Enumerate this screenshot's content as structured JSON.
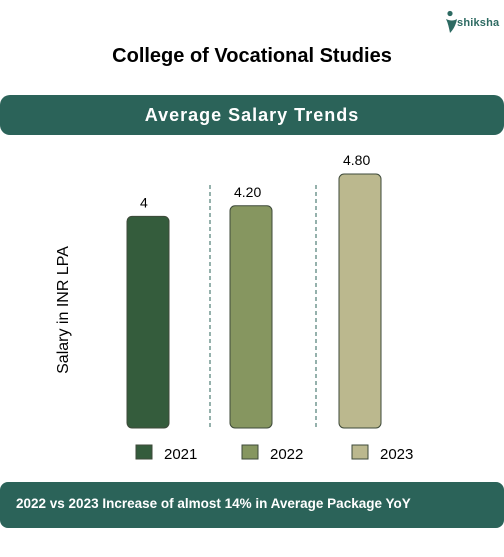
{
  "brand": {
    "logo_text": "shiksha"
  },
  "page_title": "College of Vocational Studies",
  "banner_title": "Average Salary Trends",
  "footer_text": "2022 vs 2023 Increase of almost 14% in Average Package YoY",
  "chart_data": {
    "type": "bar",
    "title": "Average Salary Trends",
    "ylabel": "Salary in INR LPA",
    "xlabel": "",
    "categories": [
      "2021",
      "2022",
      "2023"
    ],
    "values": [
      4,
      4.2,
      4.8
    ],
    "value_labels": [
      "4",
      "4.20",
      "4.80"
    ],
    "colors": [
      "#345c3c",
      "#869660",
      "#bbb88e"
    ],
    "ylim": [
      0,
      4.8
    ],
    "grid": false,
    "legend": "bottom"
  }
}
